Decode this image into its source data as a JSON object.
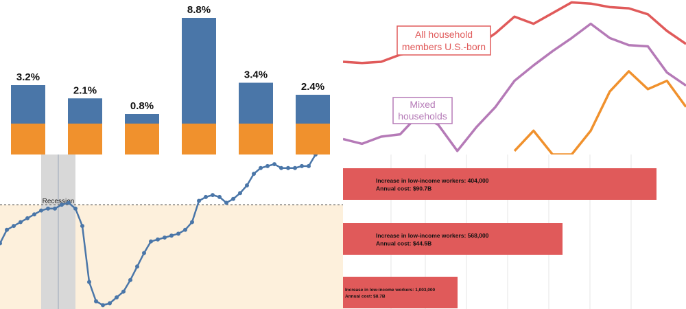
{
  "chart_data": [
    {
      "type": "bar",
      "stacked": true,
      "values": [
        3.2,
        2.1,
        0.8,
        8.8,
        3.4,
        2.4
      ],
      "data_labels": [
        "3.2%",
        "2.1%",
        "0.8%",
        "8.8%",
        "3.4%",
        "2.4%"
      ],
      "colors": {
        "upper": "#4a76a8",
        "lower": "#f0912d"
      }
    },
    {
      "type": "line",
      "annotation": "Recession",
      "x": [
        0,
        1,
        2,
        3,
        4,
        5,
        6,
        7,
        8,
        9,
        10,
        11,
        12,
        13,
        14,
        15,
        16,
        17,
        18,
        19,
        20,
        21,
        22,
        23,
        24,
        25,
        26,
        27,
        28,
        29,
        30,
        31,
        32,
        33,
        34,
        35,
        36,
        37,
        38,
        39,
        40,
        41,
        42,
        43,
        44,
        45,
        46
      ],
      "y": [
        34,
        41,
        43,
        45,
        47,
        49,
        51,
        52,
        52,
        54,
        55,
        52,
        43,
        14,
        4,
        2,
        3,
        6,
        9,
        15,
        22,
        29,
        35,
        36,
        37,
        38,
        39,
        41,
        45,
        56,
        58,
        59,
        58,
        55,
        57,
        60,
        64,
        70,
        73,
        74,
        75,
        73,
        73,
        73,
        74,
        74,
        80
      ],
      "recession_x": [
        6,
        11
      ],
      "reference_y": 54,
      "colors": {
        "line": "#4a76a8",
        "shade": "#fdf0dc",
        "recession": "#d8d8d8"
      }
    },
    {
      "type": "line",
      "series": [
        {
          "name": "All household members U.S.-born",
          "color": "#e05a5a",
          "x": [
            0,
            1,
            2,
            3,
            4,
            5,
            6,
            7,
            8,
            9,
            10,
            11,
            12,
            13,
            14,
            15,
            16,
            17,
            18
          ],
          "y": [
            78,
            77,
            78,
            84,
            87,
            94,
            93,
            91,
            102,
            116,
            110,
            119,
            128,
            127,
            124,
            123,
            118,
            104,
            93
          ]
        },
        {
          "name": "Mixed households",
          "color": "#b57ab7",
          "x": [
            0,
            1,
            2,
            3,
            4,
            5,
            6,
            7,
            8,
            9,
            10,
            11,
            12,
            13,
            14,
            15,
            16,
            17,
            18
          ],
          "y": [
            13,
            9,
            15,
            17,
            34,
            25,
            3,
            23,
            40,
            62,
            75,
            87,
            98,
            110,
            98,
            92,
            91,
            69,
            58
          ]
        },
        {
          "name": "",
          "color": "#f0912d",
          "x": [
            9,
            10,
            11,
            12,
            13,
            14,
            15,
            16,
            17,
            18
          ],
          "y": [
            3,
            20,
            0,
            0,
            20,
            53,
            70,
            55,
            62,
            40
          ]
        }
      ]
    },
    {
      "type": "bar",
      "orientation": "horizontal",
      "color": "#e05a5a",
      "bars": [
        {
          "line1": "Increase in low-income workers: 404,000",
          "line2": "Annual cost: $90.7B",
          "value": 457
        },
        {
          "line1": "Increase in low-income workers: 568,000",
          "line2": "Annual cost: $44.5B",
          "value": 320
        },
        {
          "line1": "Increase in low-income workers: 1,003,000",
          "line2": "Annual cost: $8.7B",
          "value": 167
        }
      ]
    }
  ]
}
